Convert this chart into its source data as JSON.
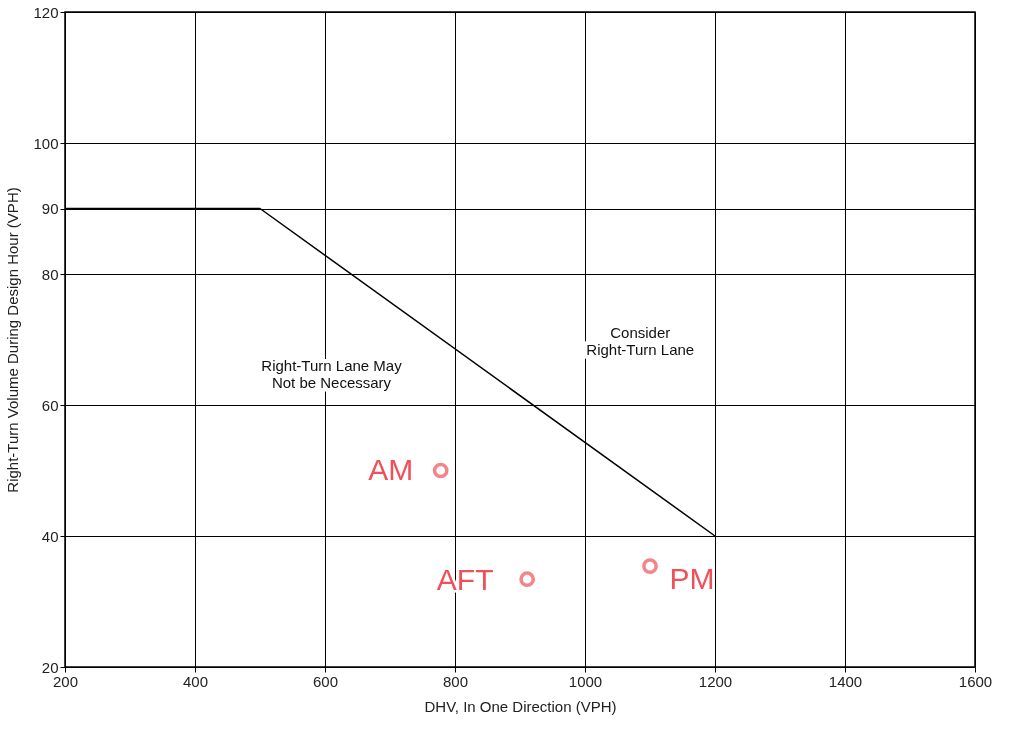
{
  "chart_data": {
    "type": "line",
    "xlabel": "DHV, In One Direction (VPH)",
    "ylabel": "Right-Turn Volume During Design Hour (VPH)",
    "xlim": [
      200,
      1600
    ],
    "xticks": [
      200,
      400,
      600,
      800,
      1000,
      1200,
      1400,
      1600
    ],
    "ylim": [
      20,
      120
    ],
    "yticks": [
      20,
      40,
      60,
      80,
      90,
      100,
      120
    ],
    "grid": true,
    "series": [
      {
        "color": "#000000",
        "x": [
          200,
          500,
          1200
        ],
        "values": [
          90,
          90,
          40
        ],
        "marker": "none"
      },
      {
        "type": "scatter",
        "color": "#f0505a",
        "x": [
          778,
          911,
          1100
        ],
        "values": [
          50,
          33.4,
          35.4
        ],
        "marker": "circle"
      }
    ],
    "annotations": [
      {
        "text": "AM",
        "x": 778,
        "y": 50
      },
      {
        "text": "AFT",
        "x": 911,
        "y": 33.4
      },
      {
        "text": "PM",
        "x": 1100,
        "y": 35.4
      },
      "Right-Turn Lane May\nNot be Necessary",
      "Consider\nRight-Turn Lane"
    ]
  }
}
